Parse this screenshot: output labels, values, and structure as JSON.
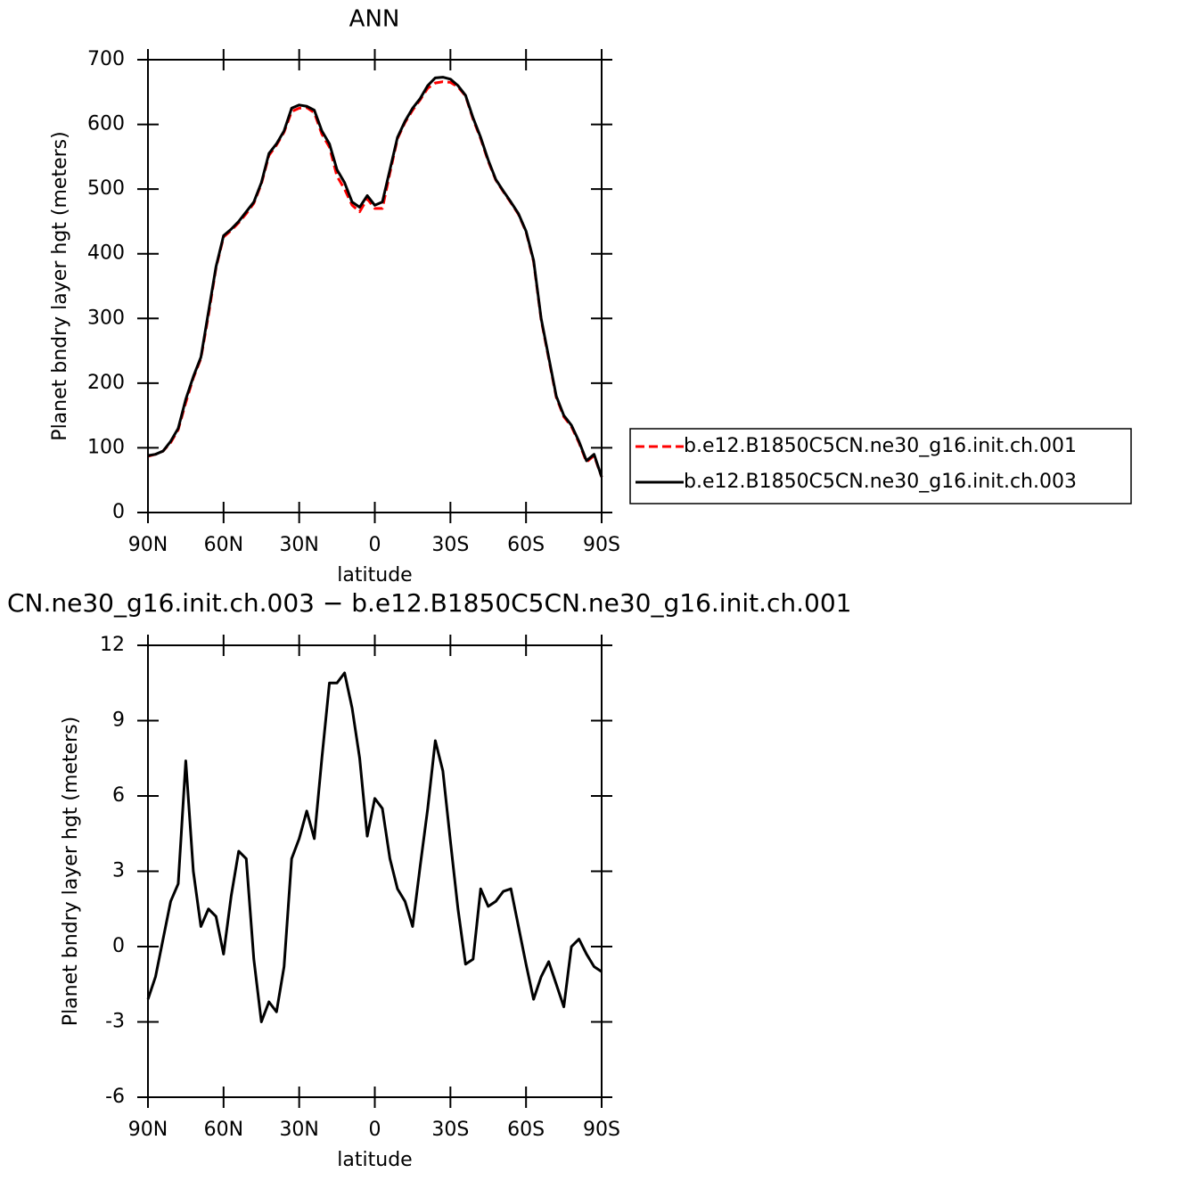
{
  "chart_data": [
    {
      "type": "line",
      "title": "ANN",
      "xlabel": "latitude",
      "ylabel": "Planet bndry layer hgt (meters)",
      "x": [
        90,
        87,
        84,
        81,
        78,
        75,
        72,
        69,
        66,
        63,
        60,
        57,
        54,
        51,
        48,
        45,
        42,
        39,
        36,
        33,
        30,
        27,
        24,
        21,
        18,
        15,
        12,
        9,
        6,
        3,
        0,
        -3,
        -6,
        -9,
        -12,
        -15,
        -18,
        -21,
        -24,
        -27,
        -30,
        -33,
        -36,
        -39,
        -42,
        -45,
        -48,
        -51,
        -54,
        -57,
        -60,
        -63,
        -66,
        -69,
        -72,
        -75,
        -78,
        -81,
        -84,
        -87,
        -90
      ],
      "series": [
        {
          "name": "b.e12.B1850C5CN.ne30_g16.init.ch.001",
          "color": "#ff0000",
          "dashed": true,
          "values": [
            87,
            90,
            95,
            108,
            128,
            170,
            208,
            238,
            305,
            378,
            426,
            436,
            448,
            462,
            478,
            508,
            552,
            568,
            588,
            620,
            625,
            626,
            618,
            585,
            565,
            520,
            500,
            475,
            465,
            485,
            470,
            470,
            525,
            578,
            603,
            622,
            638,
            656,
            664,
            666,
            665,
            658,
            644,
            608,
            578,
            543,
            514,
            496,
            479,
            461,
            434,
            388,
            298,
            238,
            178,
            148,
            133,
            108,
            78,
            88,
            55
          ]
        },
        {
          "name": "b.e12.B1850C5CN.ne30_g16.init.ch.003",
          "color": "#000000",
          "dashed": false,
          "values": [
            88,
            90,
            95,
            110,
            130,
            175,
            210,
            240,
            310,
            380,
            428,
            438,
            450,
            465,
            480,
            510,
            555,
            570,
            590,
            625,
            630,
            628,
            622,
            590,
            570,
            530,
            510,
            480,
            472,
            490,
            475,
            480,
            530,
            580,
            605,
            625,
            640,
            660,
            672,
            673,
            670,
            660,
            645,
            610,
            580,
            545,
            515,
            497,
            480,
            462,
            435,
            390,
            300,
            240,
            180,
            150,
            135,
            110,
            80,
            90,
            55
          ]
        }
      ],
      "xlim": [
        90,
        -90
      ],
      "xticks": [
        {
          "value": 90,
          "label": "90N"
        },
        {
          "value": 60,
          "label": "60N"
        },
        {
          "value": 30,
          "label": "30N"
        },
        0,
        {
          "value": -30,
          "label": "30S"
        },
        {
          "value": -60,
          "label": "60S"
        },
        {
          "value": -90,
          "label": "90S"
        }
      ],
      "ylim": [
        0,
        700
      ],
      "yticks": [
        0,
        100,
        200,
        300,
        400,
        500,
        600,
        700
      ],
      "legend": "right"
    },
    {
      "type": "line",
      "title": "CN.ne30_g16.init.ch.003 − b.e12.B1850C5CN.ne30_g16.init.ch.001",
      "xlabel": "latitude",
      "ylabel": "Planet bndry layer hgt (meters)",
      "x": [
        90,
        87,
        84,
        81,
        78,
        75,
        72,
        69,
        66,
        63,
        60,
        57,
        54,
        51,
        48,
        45,
        42,
        39,
        36,
        33,
        30,
        27,
        24,
        21,
        18,
        15,
        12,
        9,
        6,
        3,
        0,
        -3,
        -6,
        -9,
        -12,
        -15,
        -18,
        -21,
        -24,
        -27,
        -30,
        -33,
        -36,
        -39,
        -42,
        -45,
        -48,
        -51,
        -54,
        -57,
        -60,
        -63,
        -66,
        -69,
        -72,
        -75,
        -78,
        -81,
        -84,
        -87,
        -90
      ],
      "series": [
        {
          "color": "#000000",
          "dashed": false,
          "values": [
            -2.1,
            -1.2,
            0.3,
            1.8,
            2.5,
            7.4,
            3.0,
            0.8,
            1.5,
            1.2,
            -0.3,
            2.0,
            3.8,
            3.5,
            -0.5,
            -3.0,
            -2.2,
            -2.6,
            -0.8,
            3.5,
            4.3,
            5.4,
            4.3,
            7.5,
            10.5,
            10.5,
            10.9,
            9.5,
            7.5,
            4.4,
            5.9,
            5.5,
            3.5,
            2.3,
            1.8,
            0.8,
            3.2,
            5.5,
            8.2,
            7.0,
            4.2,
            1.5,
            -0.7,
            -0.5,
            2.3,
            1.6,
            1.8,
            2.2,
            2.3,
            0.8,
            -0.7,
            -2.1,
            -1.2,
            -0.6,
            -1.5,
            -2.4,
            0,
            0.3,
            -0.3,
            -0.8,
            -1.0
          ]
        }
      ],
      "xlim": [
        90,
        -90
      ],
      "xticks": [
        {
          "value": 90,
          "label": "90N"
        },
        {
          "value": 60,
          "label": "60N"
        },
        {
          "value": 30,
          "label": "30N"
        },
        0,
        {
          "value": -30,
          "label": "30S"
        },
        {
          "value": -60,
          "label": "60S"
        },
        {
          "value": -90,
          "label": "90S"
        }
      ],
      "ylim": [
        -6,
        12
      ],
      "yticks": [
        -6,
        -3,
        0,
        3,
        6,
        9,
        12
      ]
    }
  ]
}
